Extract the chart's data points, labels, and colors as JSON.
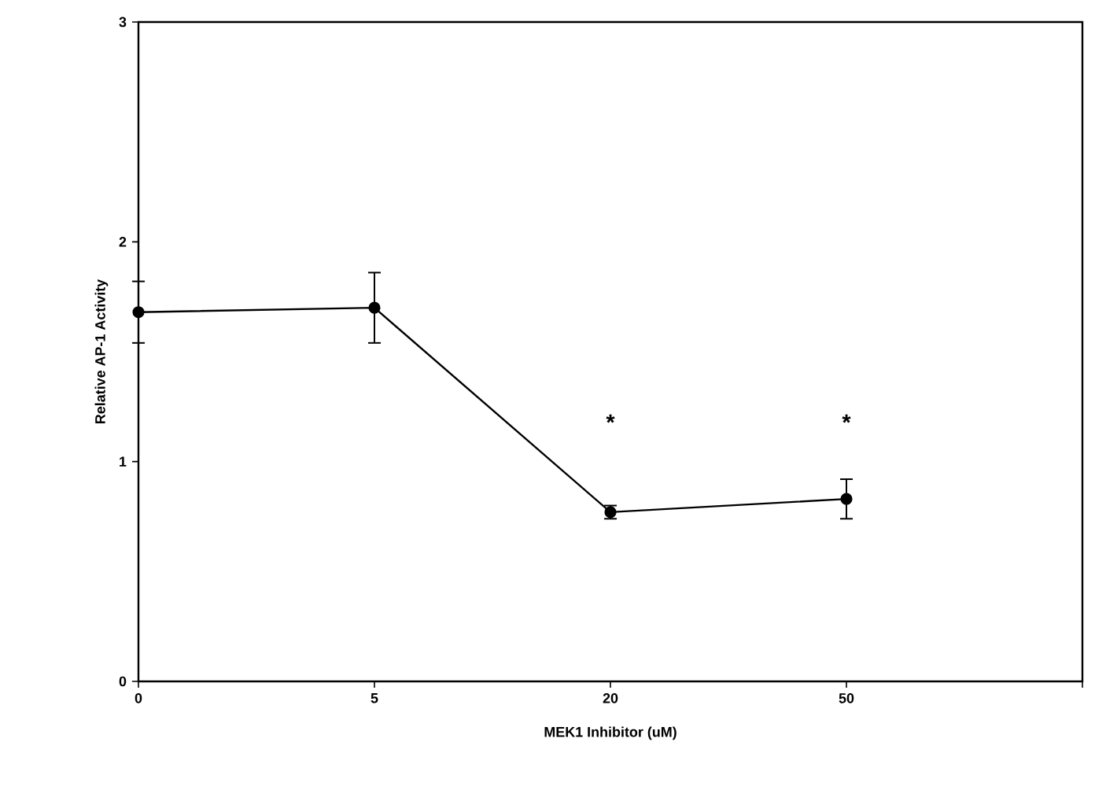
{
  "chart_data": {
    "type": "line",
    "xlabel": "MEK1 Inhibitor (uM)",
    "ylabel": "Relative AP-1 Activity",
    "categories": [
      "0",
      "5",
      "20",
      "50",
      null
    ],
    "values": [
      1.68,
      1.7,
      0.77,
      0.83,
      null
    ],
    "errors": [
      0.14,
      0.16,
      0.03,
      0.09,
      null
    ],
    "color": "#000000",
    "marker": "circle",
    "line_style": "solid",
    "ylim": [
      0,
      3
    ],
    "yticks": [
      0,
      1,
      2,
      3
    ],
    "annotations": [
      "*",
      "*"
    ]
  }
}
